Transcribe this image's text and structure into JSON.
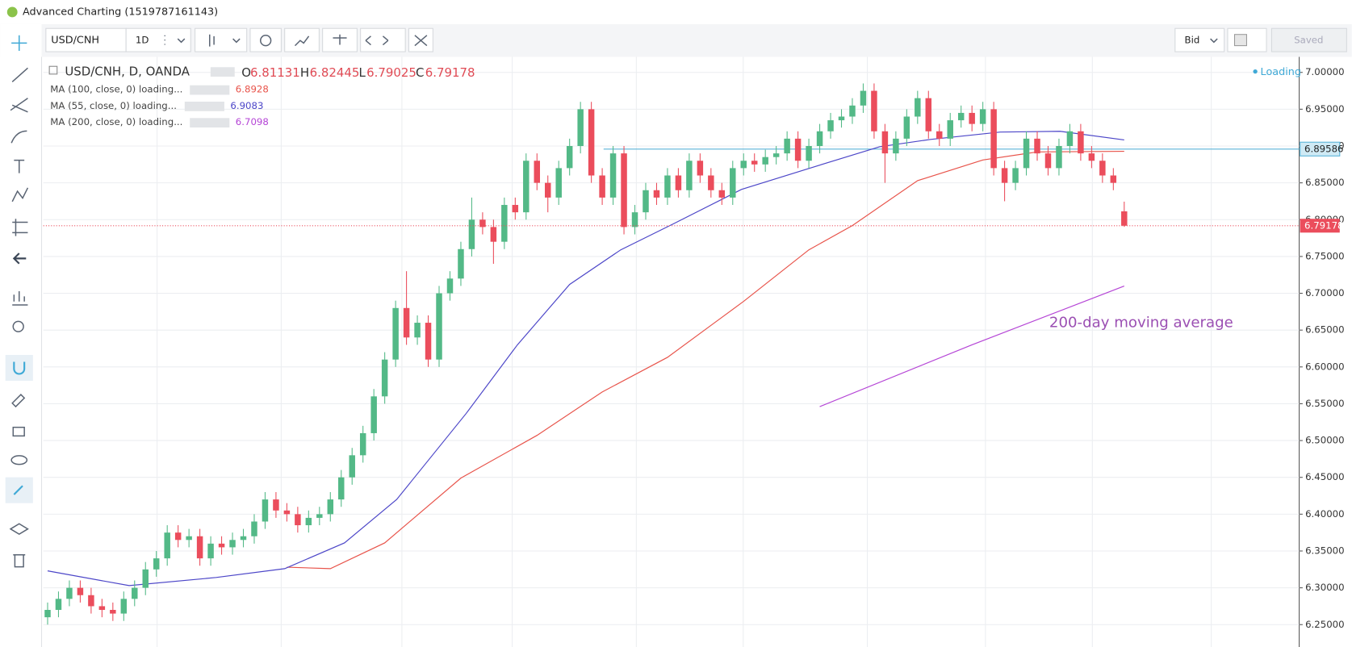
{
  "window_title": "Advanced Charting (1519787161143)",
  "toolbar": {
    "symbol": "USD/CNH",
    "interval": "1D",
    "price_type": "Bid",
    "save": "Saved"
  },
  "status": "Loading",
  "chart_data": {
    "type": "candlestick",
    "legend": {
      "symbol": "USD/CNH, D, OANDA",
      "open_label": "O",
      "high_label": "H",
      "low_label": "L",
      "close_label": "C"
    },
    "annotation": "200-day moving average",
    "hline": 6.89586,
    "up_color": "#53b987",
    "down_color": "#eb4d5c",
    "ylim": [
      6.2196,
      7.0211
    ],
    "yticks": [
      {
        "value": 6.25,
        "label": "6.25000"
      },
      {
        "value": 6.3,
        "label": "6.30000"
      },
      {
        "value": 6.35,
        "label": "6.35000"
      },
      {
        "value": 6.4,
        "label": "6.40000"
      },
      {
        "value": 6.45,
        "label": "6.45000"
      },
      {
        "value": 6.5,
        "label": "6.50000"
      },
      {
        "value": 6.55,
        "label": "6.55000"
      },
      {
        "value": 6.6,
        "label": "6.60000"
      },
      {
        "value": 6.65,
        "label": "6.65000"
      },
      {
        "value": 6.7,
        "label": "6.70000"
      },
      {
        "value": 6.75,
        "label": "6.75000"
      },
      {
        "value": 6.8,
        "label": "6.80000"
      },
      {
        "value": 6.85,
        "label": "6.85000"
      },
      {
        "value": 6.9,
        "label": "6.90000"
      },
      {
        "value": 6.95,
        "label": "6.95000"
      },
      {
        "value": 7,
        "label": "7.00000"
      }
    ],
    "grid": true,
    "open": [
      6.26,
      6.27,
      6.285,
      6.3,
      6.29,
      6.275,
      6.27,
      6.265,
      6.285,
      6.3,
      6.325,
      6.34,
      6.375,
      6.365,
      6.37,
      6.34,
      6.36,
      6.355,
      6.365,
      6.37,
      6.39,
      6.42,
      6.405,
      6.4,
      6.385,
      6.395,
      6.4,
      6.42,
      6.45,
      6.48,
      6.51,
      6.56,
      6.61,
      6.68,
      6.64,
      6.66,
      6.61,
      6.7,
      6.72,
      6.76,
      6.8,
      6.79,
      6.77,
      6.82,
      6.81,
      6.88,
      6.85,
      6.83,
      6.87,
      6.9,
      6.95,
      6.86,
      6.83,
      6.89,
      6.79,
      6.81,
      6.84,
      6.83,
      6.86,
      6.84,
      6.88,
      6.86,
      6.84,
      6.83,
      6.87,
      6.88,
      6.875,
      6.885,
      6.89,
      6.91,
      6.88,
      6.9,
      6.92,
      6.935,
      6.94,
      6.955,
      6.975,
      6.92,
      6.89,
      6.91,
      6.94,
      6.965,
      6.92,
      6.91,
      6.935,
      6.945,
      6.93,
      6.95,
      6.87,
      6.85,
      6.87,
      6.91,
      6.89,
      6.87,
      6.9,
      6.92,
      6.89,
      6.88,
      6.86,
      6.81131
    ],
    "high": [
      6.28,
      6.295,
      6.31,
      6.31,
      6.3,
      6.285,
      6.28,
      6.295,
      6.31,
      6.335,
      6.35,
      6.385,
      6.385,
      6.38,
      6.38,
      6.37,
      6.37,
      6.375,
      6.38,
      6.4,
      6.43,
      6.43,
      6.415,
      6.41,
      6.405,
      6.41,
      6.43,
      6.46,
      6.49,
      6.52,
      6.57,
      6.62,
      6.69,
      6.73,
      6.67,
      6.67,
      6.71,
      6.73,
      6.77,
      6.83,
      6.81,
      6.8,
      6.83,
      6.83,
      6.89,
      6.89,
      6.86,
      6.88,
      6.91,
      6.96,
      6.96,
      6.87,
      6.9,
      6.9,
      6.82,
      6.85,
      6.85,
      6.87,
      6.87,
      6.89,
      6.89,
      6.87,
      6.85,
      6.88,
      6.89,
      6.89,
      6.895,
      6.9,
      6.92,
      6.92,
      6.91,
      6.93,
      6.945,
      6.95,
      6.965,
      6.985,
      6.985,
      6.93,
      6.92,
      6.95,
      6.975,
      6.975,
      6.93,
      6.945,
      6.955,
      6.955,
      6.96,
      6.96,
      6.88,
      6.88,
      6.92,
      6.92,
      6.9,
      6.91,
      6.93,
      6.93,
      6.9,
      6.89,
      6.87,
      6.82445
    ],
    "low": [
      6.25,
      6.26,
      6.275,
      6.28,
      6.265,
      6.26,
      6.255,
      6.255,
      6.275,
      6.29,
      6.315,
      6.33,
      6.355,
      6.355,
      6.33,
      6.33,
      6.345,
      6.345,
      6.355,
      6.36,
      6.38,
      6.395,
      6.39,
      6.375,
      6.375,
      6.385,
      6.39,
      6.41,
      6.44,
      6.47,
      6.5,
      6.55,
      6.6,
      6.63,
      6.63,
      6.6,
      6.6,
      6.69,
      6.71,
      6.75,
      6.78,
      6.74,
      6.76,
      6.8,
      6.8,
      6.84,
      6.81,
      6.82,
      6.86,
      6.89,
      6.85,
      6.82,
      6.82,
      6.78,
      6.78,
      6.8,
      6.82,
      6.82,
      6.83,
      6.83,
      6.85,
      6.83,
      6.82,
      6.82,
      6.86,
      6.865,
      6.865,
      6.875,
      6.88,
      6.87,
      6.87,
      6.89,
      6.91,
      6.925,
      6.93,
      6.945,
      6.91,
      6.85,
      6.88,
      6.9,
      6.93,
      6.91,
      6.9,
      6.9,
      6.925,
      6.92,
      6.92,
      6.86,
      6.825,
      6.84,
      6.86,
      6.88,
      6.86,
      6.86,
      6.89,
      6.88,
      6.87,
      6.85,
      6.84,
      6.79025
    ],
    "close": [
      6.27,
      6.285,
      6.3,
      6.29,
      6.275,
      6.27,
      6.265,
      6.285,
      6.3,
      6.325,
      6.34,
      6.375,
      6.365,
      6.37,
      6.34,
      6.36,
      6.355,
      6.365,
      6.37,
      6.39,
      6.42,
      6.405,
      6.4,
      6.385,
      6.395,
      6.4,
      6.42,
      6.45,
      6.48,
      6.51,
      6.56,
      6.61,
      6.68,
      6.64,
      6.66,
      6.61,
      6.7,
      6.72,
      6.76,
      6.8,
      6.79,
      6.77,
      6.82,
      6.81,
      6.88,
      6.85,
      6.83,
      6.87,
      6.9,
      6.95,
      6.86,
      6.83,
      6.89,
      6.79,
      6.81,
      6.84,
      6.83,
      6.86,
      6.84,
      6.88,
      6.86,
      6.84,
      6.83,
      6.87,
      6.88,
      6.875,
      6.885,
      6.89,
      6.91,
      6.88,
      6.9,
      6.92,
      6.935,
      6.94,
      6.955,
      6.975,
      6.92,
      6.89,
      6.91,
      6.94,
      6.965,
      6.92,
      6.91,
      6.935,
      6.945,
      6.93,
      6.95,
      6.87,
      6.85,
      6.87,
      6.91,
      6.89,
      6.87,
      6.9,
      6.92,
      6.89,
      6.88,
      6.86,
      6.85,
      6.79178
    ],
    "series": [
      {
        "name": "MA (100, close, 0) loading...",
        "color": "#e8534a",
        "x": [
          22,
          26,
          31,
          38,
          45,
          51,
          57,
          64,
          70,
          74,
          80,
          86,
          91,
          99
        ],
        "values": [
          6.328,
          6.326,
          6.361,
          6.449,
          6.507,
          6.566,
          6.613,
          6.689,
          6.759,
          6.792,
          6.853,
          6.881,
          6.892,
          6.8928
        ]
      },
      {
        "name": "MA (55, close, 0) loading...",
        "color": "#4c46c8",
        "x": [
          0,
          7.5,
          15.5,
          21.8,
          27.3,
          32.1,
          38.5,
          43.2,
          48,
          52.7,
          57.5,
          63.8,
          70.1,
          76.5,
          81.2,
          87.6,
          93.1,
          99
        ],
        "values": [
          6.323,
          6.303,
          6.314,
          6.326,
          6.361,
          6.42,
          6.537,
          6.63,
          6.712,
          6.759,
          6.794,
          6.841,
          6.87,
          6.899,
          6.909,
          6.919,
          6.92,
          6.9083
        ]
      },
      {
        "name": "MA (200, close, 0) loading...",
        "color": "#b545d6",
        "x": [
          71,
          85,
          99
        ],
        "values": [
          6.546,
          6.63,
          6.7098
        ]
      }
    ]
  }
}
